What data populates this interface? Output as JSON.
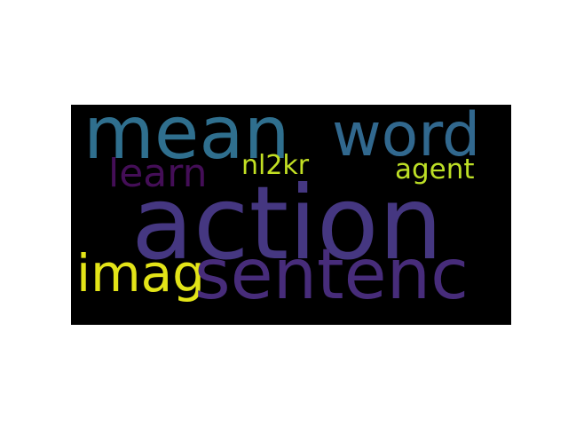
{
  "words": {
    "mean": {
      "text": "mean",
      "color": "#2f6f8e"
    },
    "word": {
      "text": "word",
      "color": "#31688e"
    },
    "learn": {
      "text": "learn",
      "color": "#440e57"
    },
    "nl2kr": {
      "text": "nl2kr",
      "color": "#c2df23"
    },
    "agent": {
      "text": "agent",
      "color": "#bddf26"
    },
    "action": {
      "text": "action",
      "color": "#453781"
    },
    "imag": {
      "text": "imag",
      "color": "#e3e418"
    },
    "sentenc": {
      "text": "sentenc",
      "color": "#472c7a"
    }
  },
  "background_color": "#000000"
}
